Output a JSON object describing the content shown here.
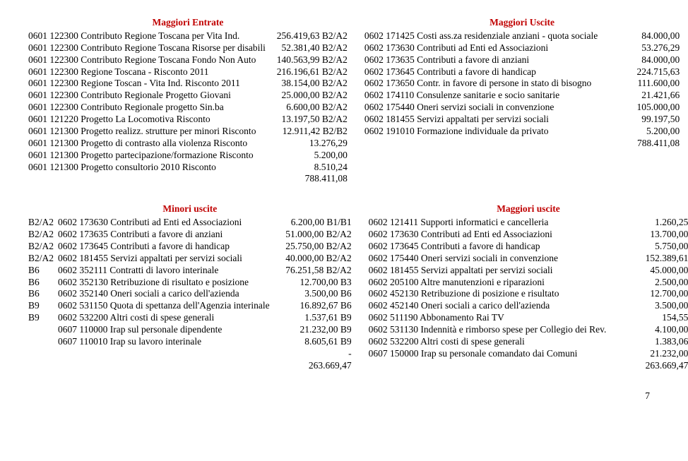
{
  "pageNumber": "7",
  "sections": [
    {
      "left": {
        "heading": "Maggiori Entrate",
        "rows": [
          {
            "lbl": "0601 122300 Contributo Regione Toscana per Vita Ind.",
            "amt": "256.419,63 B2/A2"
          },
          {
            "lbl": "0601 122300 Contributo Regione Toscana Risorse per disabili",
            "amt": "52.381,40 B2/A2"
          },
          {
            "lbl": "0601 122300 Contributo Regione Toscana Fondo Non Auto",
            "amt": "140.563,99 B2/A2"
          },
          {
            "lbl": "0601 122300 Regione Toscana - Risconto 2011",
            "amt": "216.196,61 B2/A2"
          },
          {
            "lbl": "0601 122300 Regione Toscan - Vita Ind. Risconto 2011",
            "amt": "38.154,00 B2/A2"
          },
          {
            "lbl": "0601 122300 Contributo Regionale Progetto Giovani",
            "amt": "25.000,00 B2/A2"
          },
          {
            "lbl": "0601 122300 Contributo Regionale progetto Sin.ba",
            "amt": "6.600,00 B2/A2"
          },
          {
            "lbl": "0601 121220 Progetto La Locomotiva Risconto",
            "amt": "13.197,50 B2/A2"
          },
          {
            "lbl": "0601 121300 Progetto realizz. strutture per minori Risconto",
            "amt": "12.911,42 B2/B2"
          },
          {
            "lbl": "0601 121300 Progetto di contrasto alla violenza Risconto",
            "amt": "13.276,29"
          },
          {
            "lbl": "0601 121300 Progetto partecipazione/formazione Risconto",
            "amt": "5.200,00"
          },
          {
            "lbl": "0601 121300 Progetto consultorio 2010 Risconto",
            "amt": "8.510,24"
          },
          {
            "lbl": "",
            "amt": "788.411,08"
          }
        ]
      },
      "right": {
        "heading": "Maggiori Uscite",
        "rows": [
          {
            "lbl": "0602 171425 Costi ass.za residenziale anziani - quota sociale",
            "amt": "84.000,00"
          },
          {
            "lbl": "0602 173630 Contributi ad Enti ed Associazioni",
            "amt": "53.276,29"
          },
          {
            "lbl": "0602 173635 Contributi a favore di anziani",
            "amt": "84.000,00"
          },
          {
            "lbl": "0602 173645 Contributi a favore di handicap",
            "amt": "224.715,63"
          },
          {
            "lbl": "0602 173650 Contr. in favore di persone in stato di bisogno",
            "amt": "111.600,00"
          },
          {
            "lbl": "0602 174110 Consulenze sanitarie e socio sanitarie",
            "amt": "21.421,66"
          },
          {
            "lbl": "0602 175440 Oneri servizi sociali in convenzione",
            "amt": "105.000,00"
          },
          {
            "lbl": "0602 181455 Servizi appaltati per servizi sociali",
            "amt": "99.197,50"
          },
          {
            "lbl": "0602 191010 Formazione individuale da privato",
            "amt": "5.200,00"
          },
          {
            "lbl": "",
            "amt": "788.411,08"
          }
        ]
      }
    },
    {
      "left": {
        "heading": "Minori uscite",
        "rows": [
          {
            "pre": "B2/A2",
            "lbl": "0602 173630 Contributi ad Enti ed Associazioni",
            "amt": "6.200,00 B1/B1"
          },
          {
            "pre": "B2/A2",
            "lbl": "0602 173635 Contributi a favore di anziani",
            "amt": "51.000,00 B2/A2"
          },
          {
            "pre": "B2/A2",
            "lbl": "0602 173645 Contributi a favore di handicap",
            "amt": "25.750,00 B2/A2"
          },
          {
            "pre": "B2/A2",
            "lbl": "0602 181455 Servizi appaltati per servizi sociali",
            "amt": "40.000,00 B2/A2"
          },
          {
            "pre": "B6",
            "lbl": "0602 352111 Contratti di lavoro interinale",
            "amt": "76.251,58 B2/A2"
          },
          {
            "pre": "B6",
            "lbl": "0602 352130 Retribuzione di risultato e posizione",
            "amt": "12.700,00 B3"
          },
          {
            "pre": "B6",
            "lbl": "0602 352140 Oneri sociali a carico dell'azienda",
            "amt": "3.500,00 B6"
          },
          {
            "pre": "B9",
            "lbl": "0602 531150 Quota di spettanza dell'Agenzia interinale",
            "amt": "16.892,67 B6"
          },
          {
            "pre": "B9",
            "lbl": "0602 532200 Altri costi di spese generali",
            "amt": "1.537,61 B9"
          },
          {
            "pre": "",
            "lbl": "0607 110000 Irap sul personale dipendente",
            "amt": "21.232,00 B9"
          },
          {
            "pre": "",
            "lbl": "0607 110010 Irap su lavoro interinale",
            "amt": "8.605,61 B9"
          },
          {
            "pre": "",
            "lbl": "",
            "amt": "-"
          },
          {
            "pre": "",
            "lbl": "",
            "amt": "263.669,47"
          }
        ]
      },
      "right": {
        "heading": "Maggiori uscite",
        "rows": [
          {
            "lbl": "0602 121411 Supporti informatici e cancelleria",
            "amt": "1.260,25"
          },
          {
            "lbl": "0602 173630 Contributi ad Enti ed Associazioni",
            "amt": "13.700,00"
          },
          {
            "lbl": "0602 173645 Contributi a favore di handicap",
            "amt": "5.750,00"
          },
          {
            "lbl": "0602 175440 Oneri servizi sociali in convenzione",
            "amt": "152.389,61"
          },
          {
            "lbl": "0602 181455 Servizi appaltati per servizi sociali",
            "amt": "45.000,00"
          },
          {
            "lbl": "0602 205100 Altre manutenzioni e riparazioni",
            "amt": "2.500,00"
          },
          {
            "lbl": "0602 452130 Retribuzione di posizione e risultato",
            "amt": "12.700,00"
          },
          {
            "lbl": "0602 452140 Oneri sociali a carico dell'azienda",
            "amt": "3.500,00"
          },
          {
            "lbl": "0602 511190 Abbonamento Rai TV",
            "amt": "154,55"
          },
          {
            "lbl": "0602 531130 Indennità e rimborso spese per Collegio dei Rev.",
            "amt": "4.100,00"
          },
          {
            "lbl": "0602 532200 Altri costi di spese generali",
            "amt": "1.383,06"
          },
          {
            "lbl": "0607 150000 Irap su personale comandato dai Comuni",
            "amt": "21.232,00"
          },
          {
            "lbl": "",
            "amt": "263.669,47"
          }
        ]
      }
    }
  ]
}
